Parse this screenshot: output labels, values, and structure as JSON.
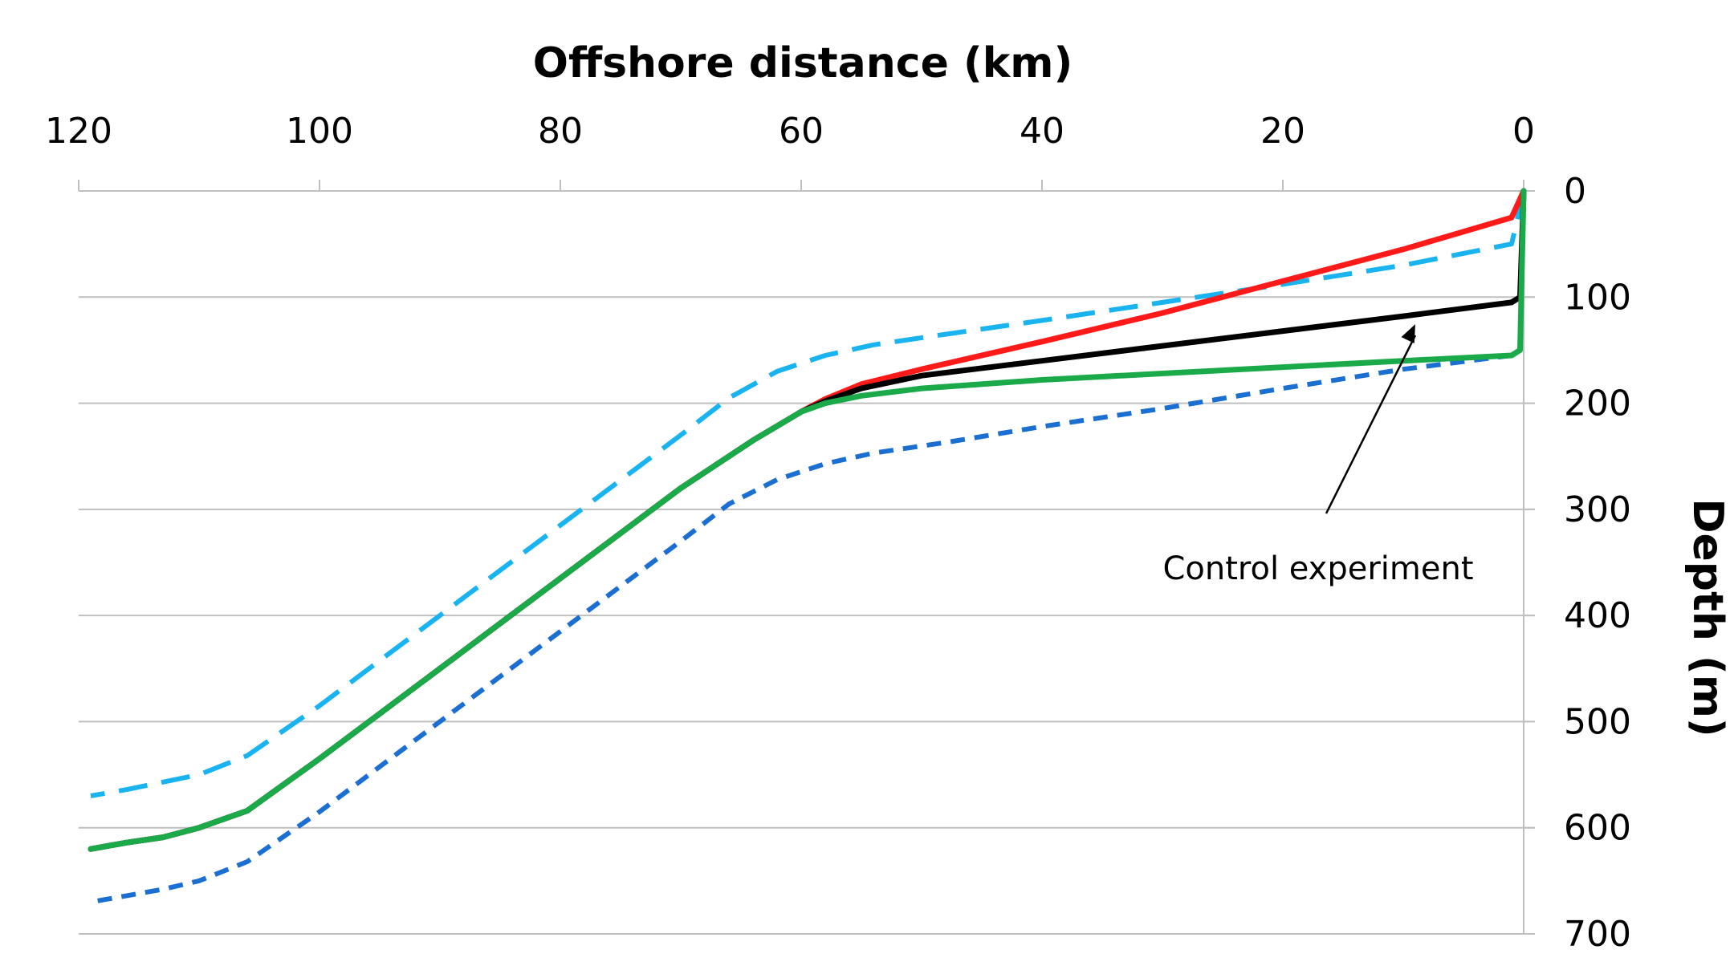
{
  "chart_data": {
    "type": "line",
    "title": "",
    "xlabel": "Offshore distance (km)",
    "ylabel": "Depth (m)",
    "x_axis": {
      "position": "top",
      "reversed": true,
      "range": [
        0,
        120
      ],
      "ticks": [
        120,
        100,
        80,
        60,
        40,
        20,
        0
      ]
    },
    "y_axis": {
      "position": "right",
      "inverted": true,
      "range": [
        0,
        700
      ],
      "ticks": [
        0,
        100,
        200,
        300,
        400,
        500,
        600,
        700
      ]
    },
    "grid": "horizontal",
    "legend": "none",
    "series": [
      {
        "color": "#ff1a1a",
        "dash": "solid",
        "x": [
          0,
          1,
          10,
          20,
          30,
          40,
          50,
          55,
          58,
          60,
          64,
          70,
          80,
          90,
          100,
          106,
          110,
          113,
          116,
          119
        ],
        "y": [
          0,
          25,
          55,
          85,
          115,
          142,
          168,
          182,
          196,
          208,
          235,
          280,
          365,
          450,
          535,
          584,
          600,
          609,
          614,
          620
        ]
      },
      {
        "color": "#000000",
        "dash": "solid",
        "x": [
          0,
          0.3,
          1,
          10,
          20,
          30,
          40,
          50,
          55,
          58,
          60,
          64,
          70,
          80,
          90,
          100,
          106,
          110,
          113,
          116,
          119
        ],
        "y": [
          0,
          100,
          105,
          118,
          132,
          146,
          160,
          174,
          186,
          198,
          208,
          235,
          280,
          365,
          450,
          535,
          584,
          600,
          609,
          614,
          620
        ]
      },
      {
        "color": "#1aaa4a",
        "dash": "solid",
        "x": [
          0,
          0.3,
          1,
          10,
          20,
          30,
          40,
          50,
          55,
          58,
          60,
          64,
          70,
          80,
          90,
          100,
          106,
          110,
          113,
          116,
          119
        ],
        "y": [
          0,
          150,
          155,
          160,
          166,
          172,
          178,
          186,
          193,
          200,
          208,
          235,
          280,
          365,
          450,
          535,
          584,
          600,
          609,
          614,
          620
        ]
      },
      {
        "color": "#19b3f0",
        "dash": "long-dash",
        "x": [
          0,
          1,
          10,
          20,
          30,
          40,
          48,
          54,
          58,
          62,
          66,
          70,
          80,
          90,
          100,
          106,
          110,
          113,
          116,
          119
        ],
        "y": [
          0,
          50,
          70,
          88,
          105,
          122,
          135,
          145,
          155,
          170,
          195,
          230,
          315,
          400,
          485,
          532,
          550,
          557,
          564,
          570
        ]
      },
      {
        "color": "#1a6fd1",
        "dash": "short-dash",
        "x": [
          0,
          0.3,
          1,
          10,
          20,
          30,
          40,
          48,
          54,
          58,
          62,
          66,
          70,
          80,
          90,
          100,
          106,
          110,
          113,
          116,
          119
        ],
        "y": [
          0,
          150,
          155,
          168,
          186,
          205,
          222,
          237,
          247,
          257,
          272,
          295,
          330,
          415,
          500,
          585,
          632,
          650,
          658,
          664,
          670
        ]
      }
    ],
    "annotations": [
      {
        "text": "Control experiment",
        "arrow_to": {
          "x": 9,
          "y": 118
        }
      }
    ]
  }
}
